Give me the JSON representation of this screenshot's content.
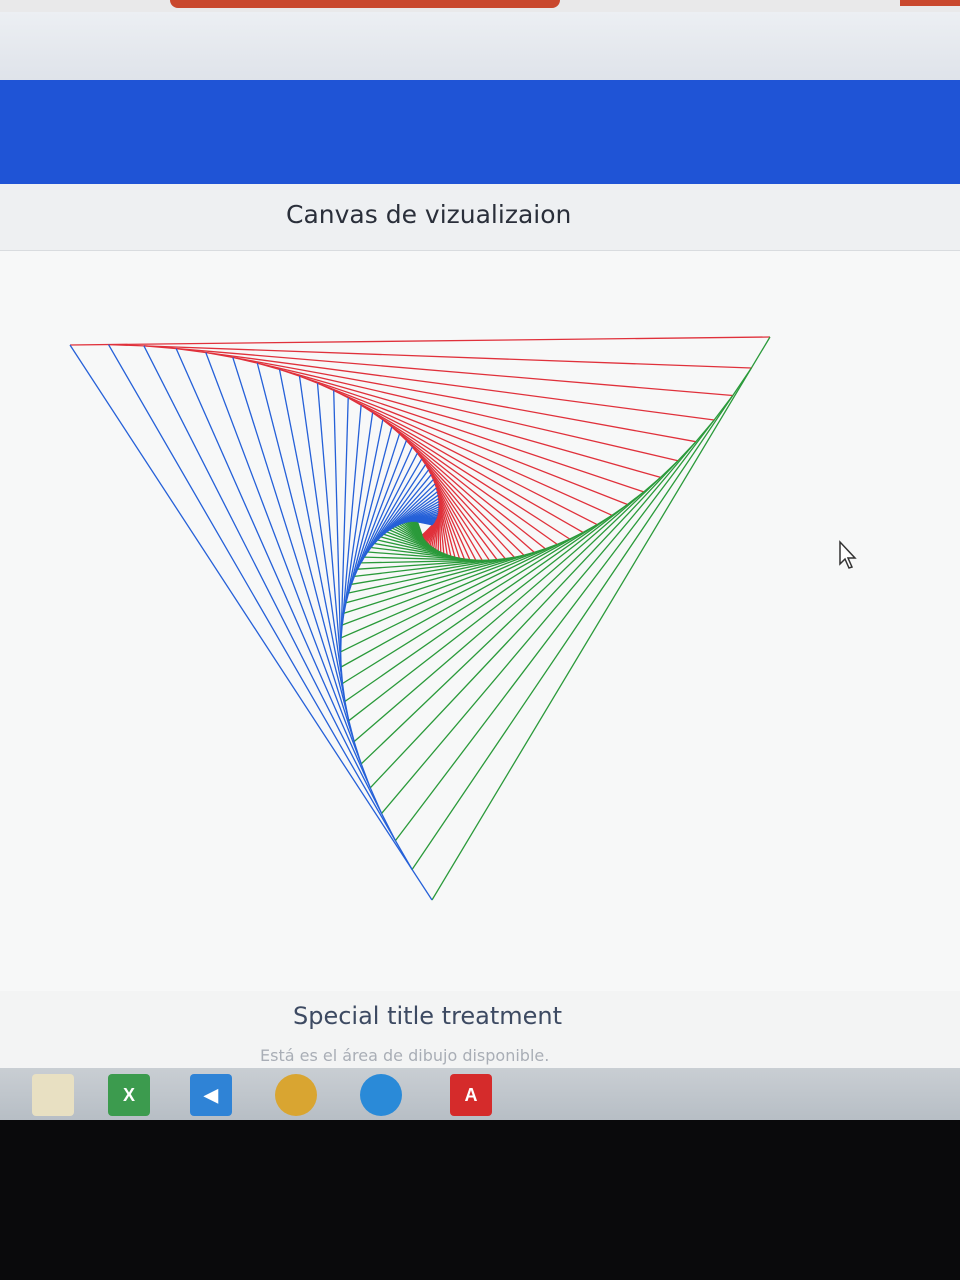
{
  "browser": {
    "accent_color": "#c9482e"
  },
  "navbar": {
    "color": "#1f54d6"
  },
  "card": {
    "header": "Canvas de vizualizaion",
    "title": "Special title treatment",
    "text": "Está es el área de dibujo disponible."
  },
  "drawing": {
    "line_colors": [
      "#e0313b",
      "#2a9a3a",
      "#2560d8"
    ]
  },
  "taskbar": {
    "icons": [
      {
        "name": "file-explorer-icon",
        "color": "#e8e0c2"
      },
      {
        "name": "excel-icon",
        "color": "#3c9b4e"
      },
      {
        "name": "visual-studio-code-icon",
        "color": "#2f83d6"
      },
      {
        "name": "chrome-icon",
        "color": "#d9a531"
      },
      {
        "name": "app-icon",
        "color": "#2a8ad8"
      },
      {
        "name": "acrobat-reader-icon",
        "color": "#d52b2b"
      }
    ]
  }
}
